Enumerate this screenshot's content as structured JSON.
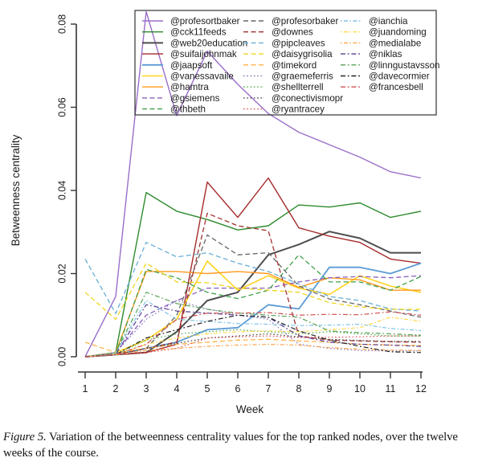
{
  "figure": {
    "caption_label": "Figure 5.",
    "caption_text": " Variation of the betweenness centrality values for the top ranked nodes, over the twelve weeks of the course."
  },
  "chart_data": {
    "type": "line",
    "x": [
      1,
      2,
      3,
      4,
      5,
      6,
      7,
      8,
      9,
      10,
      11,
      12
    ],
    "xlabel": "Week",
    "ylabel": "Betweenness centrality",
    "ylim": [
      0.0,
      0.0835
    ],
    "yticks": [
      0.0,
      0.02,
      0.04,
      0.06,
      0.08
    ],
    "ytick_labels": [
      "0.00",
      "0.02",
      "0.04",
      "0.06",
      "0.08"
    ],
    "grid": false,
    "legend_position": "top-center",
    "legend_columns": 3,
    "series": [
      {
        "name": "@profesortbaker",
        "color": "#9A6FC9",
        "style": "solid",
        "lw": 1.4,
        "values": [
          0,
          0.0145,
          0.083,
          0.058,
          0.0735,
          0.0655,
          0.0585,
          0.054,
          0.051,
          0.048,
          0.0445,
          0.043
        ]
      },
      {
        "name": "@cck11feeds",
        "color": "#2E8B2E",
        "style": "solid",
        "lw": 1.4,
        "values": [
          0,
          0.001,
          0.0395,
          0.035,
          0.033,
          0.0305,
          0.0315,
          0.0365,
          0.036,
          0.037,
          0.0335,
          0.035
        ]
      },
      {
        "name": "@web20education",
        "color": "#4D4D4D",
        "style": "solid",
        "lw": 2.0,
        "values": [
          0,
          0.0005,
          0.001,
          0.006,
          0.0135,
          0.0155,
          0.0245,
          0.027,
          0.0301,
          0.0285,
          0.025,
          0.025
        ]
      },
      {
        "name": "@suifaijohnmak",
        "color": "#A52A2A",
        "style": "solid",
        "lw": 1.4,
        "values": [
          0,
          0.0005,
          0.001,
          0.003,
          0.042,
          0.0335,
          0.043,
          0.031,
          0.029,
          0.0275,
          0.0235,
          0.0225
        ]
      },
      {
        "name": "@jaapsoft",
        "color": "#5B9BD5",
        "style": "solid",
        "lw": 1.8,
        "values": [
          0,
          0.0005,
          0.002,
          0.0035,
          0.0065,
          0.007,
          0.0125,
          0.0115,
          0.0215,
          0.0215,
          0.02,
          0.0225
        ]
      },
      {
        "name": "@vanessavaile",
        "color": "#FFD320",
        "style": "solid",
        "lw": 1.6,
        "values": [
          0,
          0.001,
          0.004,
          0.009,
          0.023,
          0.016,
          0.0195,
          0.0165,
          0.015,
          0.0195,
          0.017,
          0.0155
        ]
      },
      {
        "name": "@hamtra",
        "color": "#FF9A1F",
        "style": "solid",
        "lw": 1.4,
        "values": [
          0,
          0.001,
          0.0205,
          0.0205,
          0.02,
          0.0205,
          0.02,
          0.0167,
          0.019,
          0.0185,
          0.016,
          0.016
        ]
      },
      {
        "name": "@gsiemens",
        "color": "#8A5FBF",
        "style": "dashed",
        "lw": 1.3,
        "values": [
          0,
          0.001,
          0.01,
          0.0135,
          0.0165,
          0.0165,
          0.0165,
          0.018,
          0.019,
          0.0193,
          0.019,
          0.0195
        ]
      },
      {
        "name": "@thbeth",
        "color": "#3FA04A",
        "style": "dashed",
        "lw": 1.3,
        "values": [
          0,
          0.0005,
          0.021,
          0.019,
          0.0155,
          0.014,
          0.016,
          0.0245,
          0.018,
          0.018,
          0.016,
          0.0193
        ]
      },
      {
        "name": "@profesorbaker",
        "color": "#666666",
        "style": "dashed",
        "lw": 1.3,
        "values": [
          0,
          0.0005,
          0.002,
          0.01,
          0.0293,
          0.0245,
          0.025,
          0.017,
          0.0139,
          0.0125,
          0.011,
          0.0095
        ]
      },
      {
        "name": "@downes",
        "color": "#A03030",
        "style": "dashed",
        "lw": 1.3,
        "values": [
          0,
          0.0005,
          0.002,
          0.0035,
          0.0345,
          0.0315,
          0.0303,
          0.005,
          0.004,
          0.0038,
          0.0036,
          0.0035
        ]
      },
      {
        "name": "@pipcleaves",
        "color": "#6BAED6",
        "style": "dashed",
        "lw": 1.3,
        "values": [
          0.0235,
          0.0104,
          0.0275,
          0.024,
          0.025,
          0.0225,
          0.0205,
          0.0175,
          0.0145,
          0.0135,
          0.0115,
          0.011
        ]
      },
      {
        "name": "@daisygrisolia",
        "color": "#EFD51F",
        "style": "dashed",
        "lw": 1.3,
        "values": [
          0.0155,
          0.009,
          0.0225,
          0.018,
          0.0178,
          0.0165,
          0.016,
          0.0155,
          0.013,
          0.012,
          0.0114,
          0.0114
        ]
      },
      {
        "name": "@timekord",
        "color": "#FFB347",
        "style": "dashed",
        "lw": 1.3,
        "values": [
          0.0035,
          0.001,
          0.002,
          0.003,
          0.0035,
          0.004,
          0.0042,
          0.0038,
          0.0035,
          0.003,
          0.0028,
          0.0027
        ]
      },
      {
        "name": "@graemeferris",
        "color": "#8878B8",
        "style": "dotted",
        "lw": 1.2,
        "values": [
          0,
          0.001,
          0.009,
          0.0135,
          0.0115,
          0.01,
          0.009,
          0.003,
          0.002,
          0.0015,
          0.0014,
          0.0014
        ]
      },
      {
        "name": "@shellterrell",
        "color": "#4DAF4A",
        "style": "dotted",
        "lw": 1.2,
        "values": [
          0,
          0.0005,
          0.004,
          0.0055,
          0.006,
          0.0065,
          0.006,
          0.0055,
          0.006,
          0.0055,
          0.005,
          0.005
        ]
      },
      {
        "name": "@conectivismopr",
        "color": "#4A4A4A",
        "style": "dotted",
        "lw": 1.2,
        "values": [
          0,
          0.0005,
          0.002,
          0.0032,
          0.0045,
          0.005,
          0.0055,
          0.0048,
          0.0042,
          0.0039,
          0.0037,
          0.0037
        ]
      },
      {
        "name": "@ryantracey",
        "color": "#E05252",
        "style": "dotted",
        "lw": 1.2,
        "values": [
          0,
          0.0005,
          0.001,
          0.002,
          0.0045,
          0.0048,
          0.005,
          0.0046,
          0.0047,
          0.0048,
          0.005,
          0.005
        ]
      },
      {
        "name": "@ianchia",
        "color": "#7FC4E8",
        "style": "dashdot",
        "lw": 1.2,
        "values": [
          0,
          0.001,
          0.0135,
          0.009,
          0.0085,
          0.008,
          0.0078,
          0.0075,
          0.0076,
          0.0078,
          0.0068,
          0.0063
        ]
      },
      {
        "name": "@juandoming",
        "color": "#FFD94D",
        "style": "dashdot",
        "lw": 1.2,
        "values": [
          0,
          0.0005,
          0.003,
          0.0045,
          0.0055,
          0.006,
          0.0062,
          0.006,
          0.0065,
          0.007,
          0.0095,
          0.0085
        ]
      },
      {
        "name": "@medialabe",
        "color": "#FFA552",
        "style": "dashdot",
        "lw": 1.2,
        "values": [
          0,
          0.0005,
          0.0015,
          0.002,
          0.0025,
          0.0028,
          0.003,
          0.0028,
          0.0022,
          0.0018,
          0.0016,
          0.0015
        ]
      },
      {
        "name": "@niklas",
        "color": "#5B3F8F",
        "style": "longdashdot",
        "lw": 1.2,
        "values": [
          0,
          0.0005,
          0.0125,
          0.011,
          0.0105,
          0.01,
          0.0095,
          0.005,
          0.0035,
          0.003,
          0.0028,
          0.0025
        ]
      },
      {
        "name": "@linngustavsson",
        "color": "#57A357",
        "style": "longdashdot",
        "lw": 1.2,
        "values": [
          0,
          0.001,
          0.0155,
          0.0128,
          0.0114,
          0.0105,
          0.01,
          0.0095,
          0.0062,
          0.0058,
          0.0055,
          0.0052
        ]
      },
      {
        "name": "@davecormier",
        "color": "#222222",
        "style": "longdashdot",
        "lw": 1.2,
        "values": [
          0,
          0.0005,
          0.0045,
          0.0065,
          0.0085,
          0.01,
          0.0095,
          0.0062,
          0.004,
          0.0025,
          0.0012,
          0.001
        ]
      },
      {
        "name": "@francesbell",
        "color": "#D05050",
        "style": "longdashdot",
        "lw": 1.2,
        "values": [
          0,
          0.0005,
          0.003,
          0.009,
          0.0105,
          0.0105,
          0.0106,
          0.01,
          0.0102,
          0.0101,
          0.0108,
          0.01
        ]
      }
    ]
  }
}
